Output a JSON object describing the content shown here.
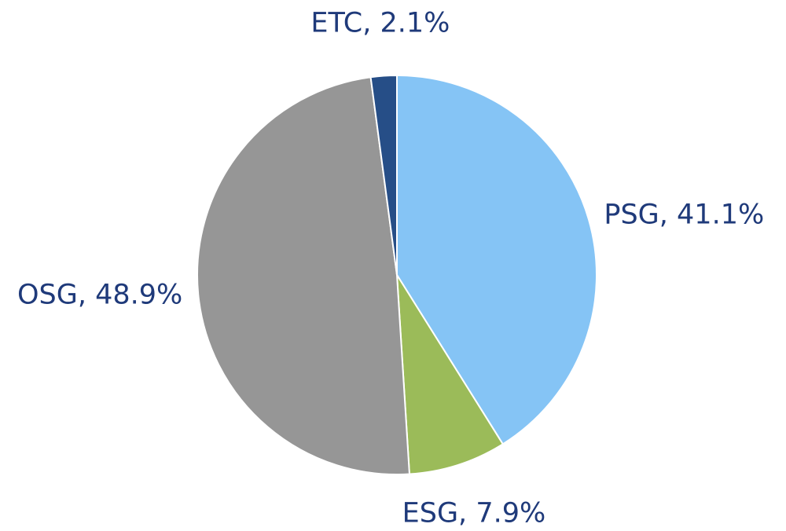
{
  "chart_data": {
    "type": "pie",
    "values": [
      41.1,
      7.9,
      48.9,
      2.1
    ],
    "value_labels": [
      "PSG, 41.1%",
      "ESG, 7.9%",
      "OSG, 48.9%",
      "ETC, 2.1%"
    ],
    "colors": [
      "#85c4f5",
      "#9bbb59",
      "#969696",
      "#264e87"
    ]
  }
}
